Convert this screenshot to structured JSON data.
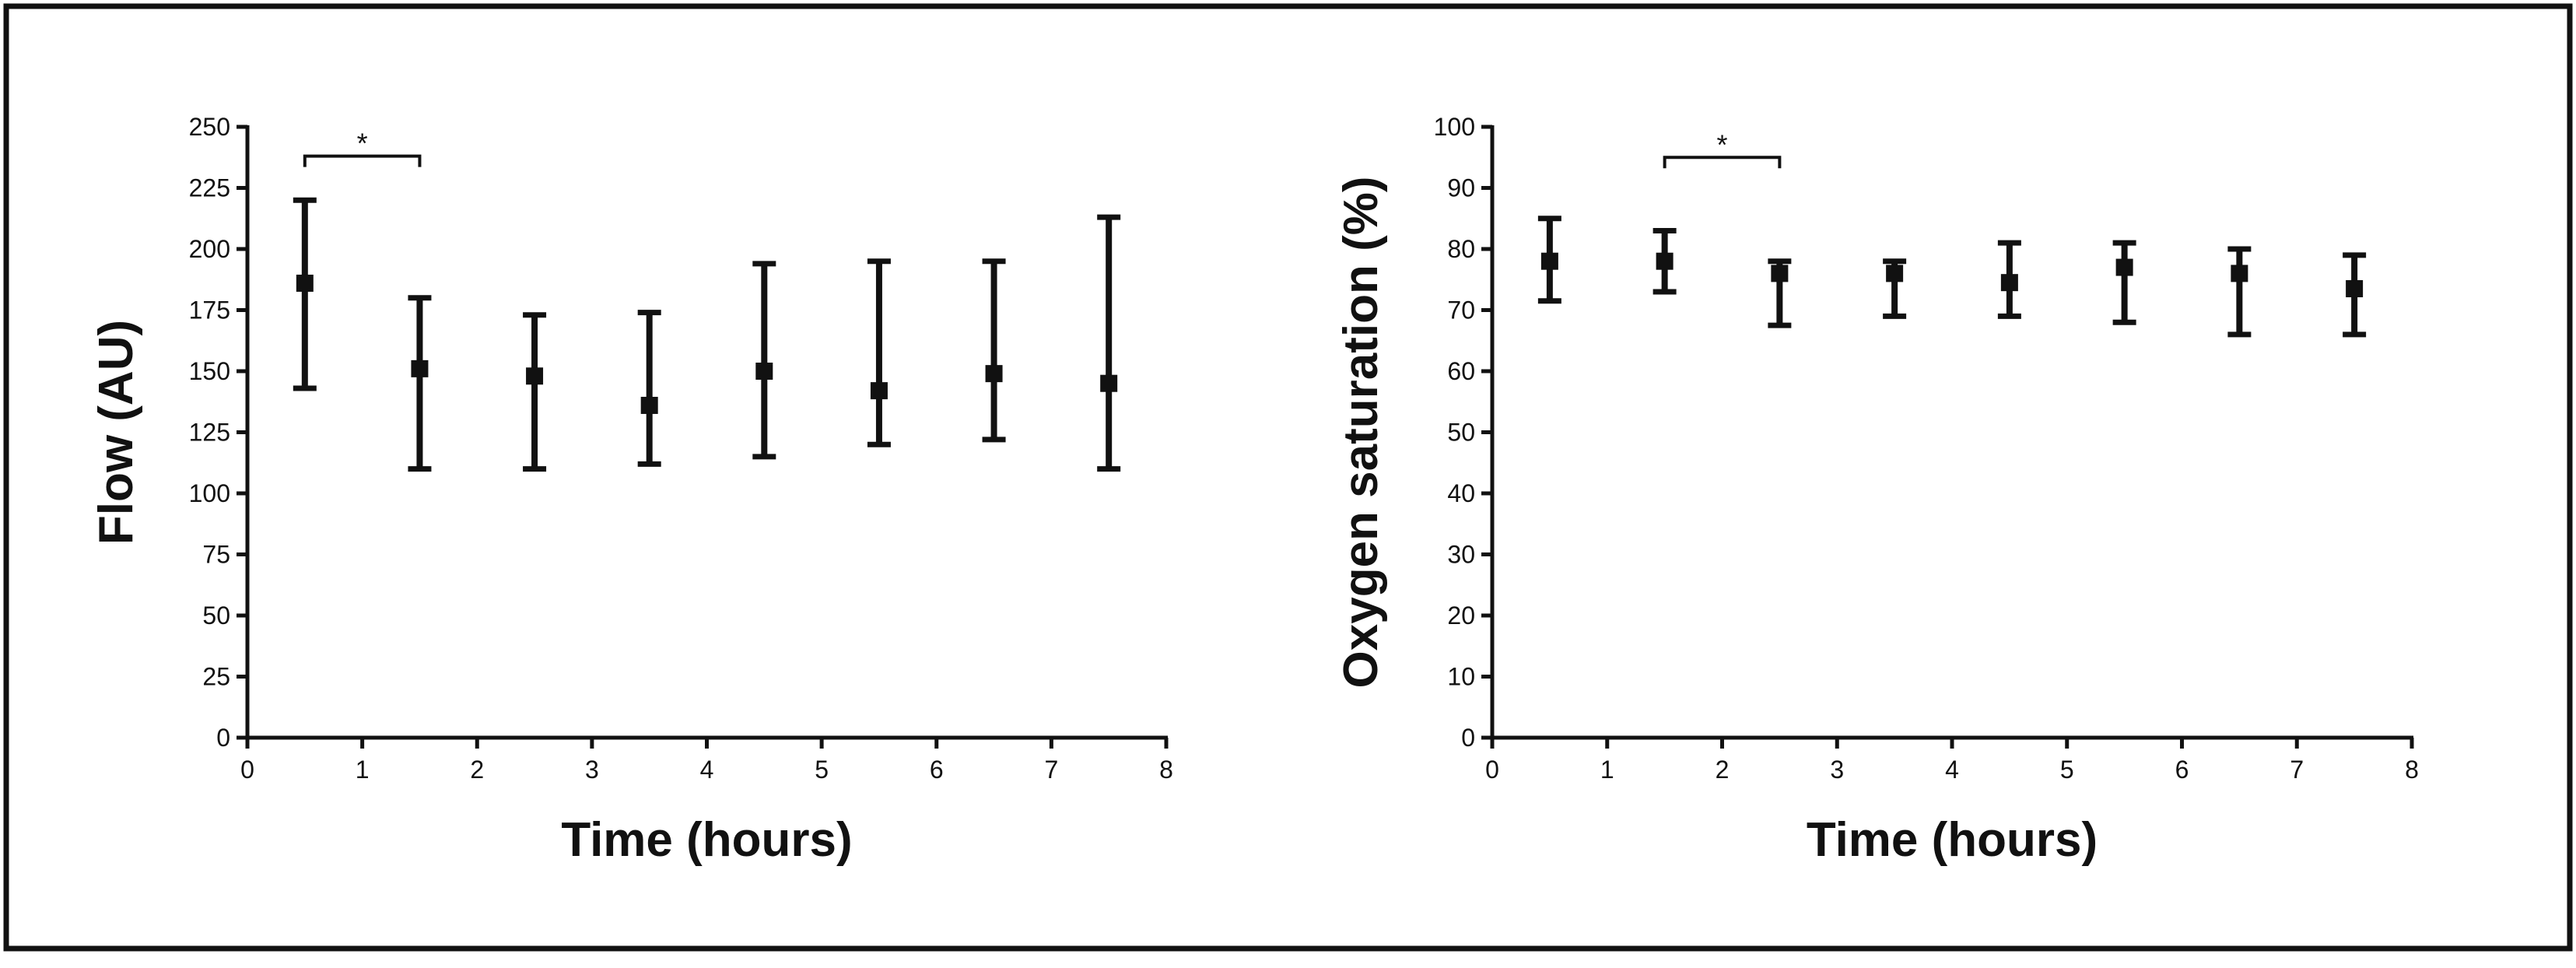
{
  "chart_data": [
    {
      "type": "scatter",
      "xlabel": "Time (hours)",
      "ylabel": "Flow (AU)",
      "xlim": [
        0,
        8
      ],
      "ylim": [
        0,
        250
      ],
      "xticks": [
        "0",
        "1",
        "2",
        "3",
        "4",
        "5",
        "6",
        "7",
        "8"
      ],
      "yticks": [
        "0",
        "25",
        "50",
        "75",
        "100",
        "125",
        "150",
        "175",
        "200",
        "225",
        "250"
      ],
      "x": [
        0.5,
        1.5,
        2.5,
        3.5,
        4.5,
        5.5,
        6.5,
        7.5
      ],
      "values": [
        186,
        151,
        148,
        136,
        150,
        142,
        149,
        145
      ],
      "error_low": [
        143,
        110,
        110,
        112,
        115,
        120,
        122,
        110
      ],
      "error_high": [
        220,
        180,
        173,
        174,
        194,
        195,
        195,
        213
      ],
      "grid": false,
      "annotations": [
        {
          "text": "*",
          "x_start": 0.5,
          "x_end": 1.5,
          "y": 238
        }
      ]
    },
    {
      "type": "scatter",
      "xlabel": "Time (hours)",
      "ylabel": "Oxygen saturation (%)",
      "xlim": [
        0,
        8
      ],
      "ylim": [
        0,
        100
      ],
      "xticks": [
        "0",
        "1",
        "2",
        "3",
        "4",
        "5",
        "6",
        "7",
        "8"
      ],
      "yticks": [
        "0",
        "10",
        "20",
        "30",
        "40",
        "50",
        "60",
        "70",
        "80",
        "90",
        "100"
      ],
      "x": [
        0.5,
        1.5,
        2.5,
        3.5,
        4.5,
        5.5,
        6.5,
        7.5
      ],
      "values": [
        78,
        78,
        76,
        76,
        74.5,
        77,
        76,
        73.5
      ],
      "error_low": [
        71.5,
        73,
        67.5,
        69,
        69,
        68,
        66,
        66
      ],
      "error_high": [
        85,
        83,
        78,
        78,
        81,
        81,
        80,
        79
      ],
      "grid": false,
      "annotations": [
        {
          "text": "*",
          "x_start": 1.5,
          "x_end": 2.5,
          "y": 95
        }
      ]
    }
  ]
}
